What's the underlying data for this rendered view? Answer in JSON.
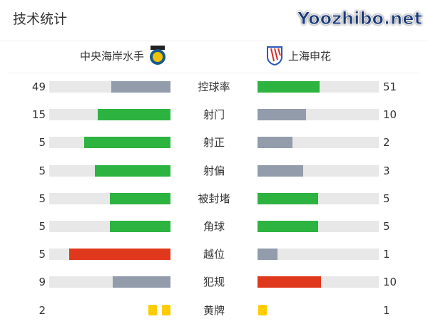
{
  "title": "技术统计",
  "home": {
    "name": "中央海岸水手",
    "logo": "central-coast-mariners-logo"
  },
  "away": {
    "name": "上海申花",
    "logo": "shanghai-shenhua-logo"
  },
  "colors": {
    "better": "#2db340",
    "worse": "#929cab",
    "bad": "#e0381c",
    "track": "#e8e8e8",
    "card": "#ffcc00"
  },
  "stats": [
    {
      "label": "控球率",
      "home": 49,
      "away": 51,
      "home_color": "worse",
      "away_color": "better"
    },
    {
      "label": "射门",
      "home": 15,
      "away": 10,
      "home_color": "better",
      "away_color": "worse"
    },
    {
      "label": "射正",
      "home": 5,
      "away": 2,
      "home_color": "better",
      "away_color": "worse"
    },
    {
      "label": "射偏",
      "home": 5,
      "away": 3,
      "home_color": "better",
      "away_color": "worse"
    },
    {
      "label": "被封堵",
      "home": 5,
      "away": 5,
      "home_color": "better",
      "away_color": "better"
    },
    {
      "label": "角球",
      "home": 5,
      "away": 5,
      "home_color": "better",
      "away_color": "better"
    },
    {
      "label": "越位",
      "home": 5,
      "away": 1,
      "home_color": "bad",
      "away_color": "worse"
    },
    {
      "label": "犯规",
      "home": 9,
      "away": 10,
      "home_color": "worse",
      "away_color": "bad"
    }
  ],
  "yellow": {
    "label": "黄牌",
    "home": 2,
    "away": 1
  },
  "watermark": "Yoozhibo.net"
}
